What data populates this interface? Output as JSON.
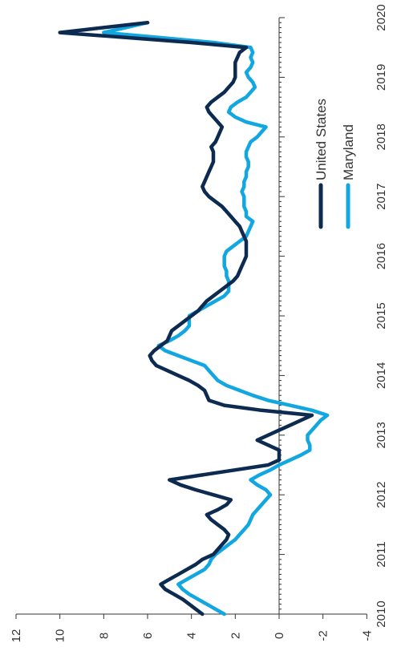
{
  "chart_data": {
    "type": "line",
    "title": "",
    "xlabel": "",
    "ylabel": "",
    "x_ticks": [
      "2010",
      "2011",
      "2012",
      "2013",
      "2014",
      "2015",
      "2016",
      "2017",
      "2018",
      "2019",
      "2020"
    ],
    "y_ticks": [
      "12",
      "10",
      "8",
      "6",
      "4",
      "2",
      "0",
      "-2",
      "-4"
    ],
    "xlim": [
      2010,
      2020
    ],
    "ylim": [
      -4,
      12
    ],
    "grid": false,
    "legend_position": "right",
    "series": [
      {
        "name": "United States",
        "color": "#0d2a50",
        "x": [
          2010.0,
          2010.083,
          2010.167,
          2010.25,
          2010.333,
          2010.417,
          2010.5,
          2010.583,
          2010.667,
          2010.75,
          2010.833,
          2010.917,
          2011.0,
          2011.083,
          2011.167,
          2011.25,
          2011.333,
          2011.417,
          2011.5,
          2011.583,
          2011.667,
          2011.75,
          2011.833,
          2011.917,
          2012.0,
          2012.083,
          2012.167,
          2012.25,
          2012.333,
          2012.417,
          2012.5,
          2012.583,
          2012.667,
          2012.75,
          2012.833,
          2012.917,
          2013.0,
          2013.083,
          2013.167,
          2013.25,
          2013.333,
          2013.417,
          2013.5,
          2013.583,
          2013.667,
          2013.75,
          2013.833,
          2013.917,
          2014.0,
          2014.083,
          2014.167,
          2014.25,
          2014.333,
          2014.417,
          2014.5,
          2014.583,
          2014.667,
          2014.75,
          2014.833,
          2014.917,
          2015.0,
          2015.083,
          2015.167,
          2015.25,
          2015.333,
          2015.417,
          2015.5,
          2015.583,
          2015.667,
          2015.75,
          2015.833,
          2015.917,
          2016.0,
          2016.083,
          2016.167,
          2016.25,
          2016.333,
          2016.417,
          2016.5,
          2016.583,
          2016.667,
          2016.75,
          2016.833,
          2016.917,
          2017.0,
          2017.083,
          2017.167,
          2017.25,
          2017.333,
          2017.417,
          2017.5,
          2017.583,
          2017.667,
          2017.75,
          2017.833,
          2017.917,
          2018.0,
          2018.083,
          2018.167,
          2018.25,
          2018.333,
          2018.417,
          2018.5,
          2018.583,
          2018.667,
          2018.75,
          2018.833,
          2018.917,
          2019.0,
          2019.083,
          2019.167,
          2019.25,
          2019.333,
          2019.417,
          2019.5,
          2019.583,
          2019.667,
          2019.75,
          2019.833,
          2019.917
        ],
        "values": [
          3.5,
          3.8,
          4.1,
          4.4,
          4.8,
          5.2,
          5.4,
          5.0,
          4.6,
          4.2,
          3.8,
          3.5,
          3.0,
          2.8,
          2.6,
          2.4,
          2.3,
          2.5,
          2.8,
          3.1,
          3.3,
          2.8,
          2.4,
          2.2,
          3.0,
          3.8,
          4.5,
          5.0,
          3.5,
          2.0,
          0.5,
          0.0,
          0.0,
          0.0,
          0.5,
          1.0,
          0.5,
          0.0,
          -0.5,
          -1.0,
          -1.5,
          0.8,
          2.5,
          3.2,
          3.3,
          3.4,
          3.7,
          4.1,
          4.6,
          5.1,
          5.6,
          5.8,
          5.9,
          5.7,
          5.4,
          5.1,
          5.0,
          4.9,
          4.6,
          4.3,
          4.0,
          3.7,
          3.5,
          3.3,
          3.0,
          2.7,
          2.4,
          2.1,
          1.9,
          1.8,
          1.7,
          1.6,
          1.5,
          1.5,
          1.5,
          1.5,
          1.6,
          1.7,
          1.8,
          2.0,
          2.2,
          2.4,
          2.6,
          2.9,
          3.2,
          3.4,
          3.5,
          3.4,
          3.3,
          3.2,
          3.1,
          3.0,
          3.0,
          3.0,
          3.1,
          2.9,
          2.8,
          2.7,
          2.6,
          2.8,
          3.0,
          3.2,
          3.3,
          3.1,
          2.8,
          2.5,
          2.3,
          2.1,
          2.0,
          2.0,
          2.0,
          2.0,
          1.9,
          1.8,
          1.5,
          4.0,
          7.0,
          10.0,
          8.0,
          6.0
        ]
      },
      {
        "name": "Maryland",
        "color": "#12a7e0",
        "x": [
          2010.0,
          2010.083,
          2010.167,
          2010.25,
          2010.333,
          2010.417,
          2010.5,
          2010.583,
          2010.667,
          2010.75,
          2010.833,
          2010.917,
          2011.0,
          2011.083,
          2011.167,
          2011.25,
          2011.333,
          2011.417,
          2011.5,
          2011.583,
          2011.667,
          2011.75,
          2011.833,
          2011.917,
          2012.0,
          2012.083,
          2012.167,
          2012.25,
          2012.333,
          2012.417,
          2012.5,
          2012.583,
          2012.667,
          2012.75,
          2012.833,
          2012.917,
          2013.0,
          2013.083,
          2013.167,
          2013.25,
          2013.333,
          2013.417,
          2013.5,
          2013.583,
          2013.667,
          2013.75,
          2013.833,
          2013.917,
          2014.0,
          2014.083,
          2014.167,
          2014.25,
          2014.333,
          2014.417,
          2014.5,
          2014.583,
          2014.667,
          2014.75,
          2014.833,
          2014.917,
          2015.0,
          2015.083,
          2015.167,
          2015.25,
          2015.333,
          2015.417,
          2015.5,
          2015.583,
          2015.667,
          2015.75,
          2015.833,
          2015.917,
          2016.0,
          2016.083,
          2016.167,
          2016.25,
          2016.333,
          2016.417,
          2016.5,
          2016.583,
          2016.667,
          2016.75,
          2016.833,
          2016.917,
          2017.0,
          2017.083,
          2017.167,
          2017.25,
          2017.333,
          2017.417,
          2017.5,
          2017.583,
          2017.667,
          2017.75,
          2017.833,
          2017.917,
          2018.0,
          2018.083,
          2018.167,
          2018.25,
          2018.333,
          2018.417,
          2018.5,
          2018.583,
          2018.667,
          2018.75,
          2018.833,
          2018.917,
          2019.0,
          2019.083,
          2019.167,
          2019.25,
          2019.333,
          2019.417,
          2019.5,
          2019.583,
          2019.667,
          2019.75,
          2019.833,
          2019.917
        ],
        "values": [
          2.5,
          2.9,
          3.3,
          3.7,
          4.1,
          4.4,
          4.6,
          4.2,
          3.8,
          3.4,
          3.2,
          3.1,
          2.9,
          2.6,
          2.3,
          2.0,
          1.8,
          1.6,
          1.4,
          1.3,
          1.2,
          1.0,
          0.8,
          0.6,
          0.4,
          0.6,
          1.0,
          1.3,
          0.9,
          0.4,
          0.0,
          -0.5,
          -1.0,
          -1.4,
          -1.4,
          -1.3,
          -1.3,
          -1.5,
          -1.7,
          -1.9,
          -2.2,
          -1.5,
          -0.5,
          0.5,
          1.2,
          1.8,
          2.4,
          2.8,
          3.0,
          3.2,
          3.4,
          4.0,
          4.6,
          5.2,
          5.5,
          5.0,
          4.6,
          4.3,
          4.1,
          4.1,
          4.1,
          3.7,
          3.3,
          2.9,
          2.5,
          2.3,
          2.3,
          2.3,
          2.4,
          2.4,
          2.5,
          2.5,
          2.5,
          2.4,
          2.1,
          1.8,
          1.5,
          1.4,
          1.3,
          1.2,
          1.5,
          1.5,
          1.6,
          1.6,
          1.6,
          1.7,
          1.6,
          1.6,
          1.5,
          1.5,
          1.4,
          1.4,
          1.5,
          1.5,
          1.4,
          1.3,
          1.0,
          0.8,
          0.6,
          1.5,
          2.0,
          2.3,
          2.2,
          1.9,
          1.5,
          1.3,
          1.1,
          1.2,
          1.4,
          1.5,
          1.3,
          1.2,
          1.3,
          1.2,
          1.3,
          3.0,
          5.5,
          8.0,
          7.0,
          6.0
        ]
      }
    ]
  }
}
